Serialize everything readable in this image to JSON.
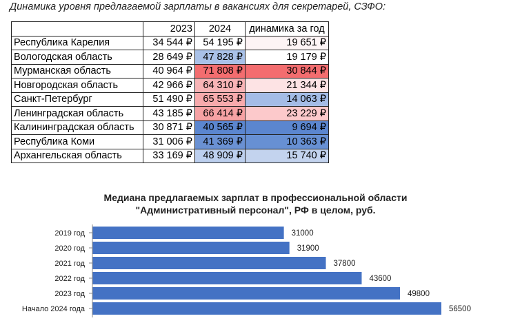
{
  "caption": "Динамика уровня предлагаемой зарплаты в вакансиях для секретарей, СЗФО:",
  "table": {
    "columns": [
      "",
      "2023",
      "2024",
      "динамика за год"
    ],
    "rows": [
      {
        "region": "Республика Карелия",
        "v2023": "34 544 ₽",
        "v2024": "54 195 ₽",
        "dyn": "19 651 ₽",
        "c2024": "#ffffff",
        "cdyn": "#fdf4f5"
      },
      {
        "region": "Вологодская область",
        "v2023": "28 649 ₽",
        "v2024": "47 828 ₽",
        "dyn": "19 179 ₽",
        "c2024": "#a9c1e8",
        "cdyn": "#ffffff"
      },
      {
        "region": "Мурманская область",
        "v2023": "40 964 ₽",
        "v2024": "71 808 ₽",
        "dyn": "30 844 ₽",
        "c2024": "#f36d6f",
        "cdyn": "#f36d6f"
      },
      {
        "region": "Новгородская область",
        "v2023": "42 966 ₽",
        "v2024": "64 310 ₽",
        "dyn": "21 344 ₽",
        "c2024": "#f8b4b6",
        "cdyn": "#fde3e4"
      },
      {
        "region": "Санкт-Петербург",
        "v2023": "51 490 ₽",
        "v2024": "65 553 ₽",
        "dyn": "14 063 ₽",
        "c2024": "#f7aaac",
        "cdyn": "#a4bce6"
      },
      {
        "region": "Ленинградская область",
        "v2023": "43 185 ₽",
        "v2024": "66 414 ₽",
        "dyn": "23 229 ₽",
        "c2024": "#f6a2a4",
        "cdyn": "#fcc9cb"
      },
      {
        "region": "Калининградская область",
        "v2023": "30 871 ₽",
        "v2024": "40 565 ₽",
        "dyn": "9 694 ₽",
        "c2024": "#5b86cf",
        "cdyn": "#5b86cf"
      },
      {
        "region": "Республика Коми",
        "v2023": "31 006 ₽",
        "v2024": "41 369 ₽",
        "dyn": "10 363 ₽",
        "c2024": "#6a91d3",
        "cdyn": "#6790d3"
      },
      {
        "region": "Архангельская область",
        "v2023": "33 169 ₽",
        "v2024": "48 909 ₽",
        "dyn": "15 740 ₽",
        "c2024": "#bccfee",
        "cdyn": "#c3d3ee"
      }
    ]
  },
  "chart_data": {
    "type": "bar",
    "orientation": "horizontal",
    "title": "Медиана предлагаемых зарплат в профессиональной области",
    "subtitle": "\"Административный персонал\", РФ в целом, руб.",
    "categories": [
      "2019 год",
      "2020 год",
      "2021 год",
      "2022 год",
      "2023 год",
      "Начало 2024 года"
    ],
    "values": [
      31000,
      31900,
      37800,
      43600,
      49800,
      56500
    ],
    "data_labels": [
      "31000",
      "31900",
      "37800",
      "43600",
      "49800",
      "56500"
    ],
    "xlim": [
      0,
      56500
    ],
    "grid": false,
    "legend": "none",
    "bar_color": "#4472c4"
  }
}
